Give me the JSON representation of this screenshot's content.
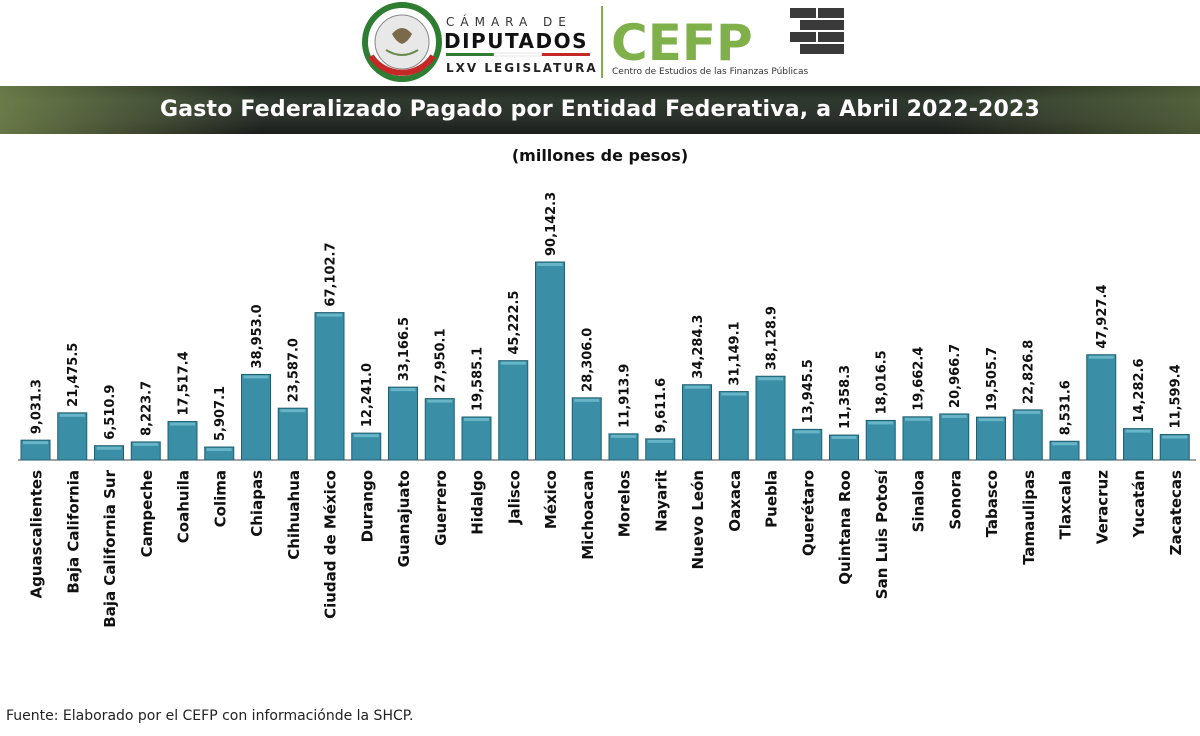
{
  "header": {
    "camara_line": "CÁMARA DE",
    "diputados_line": "DIPUTADOS",
    "legislatura_line": "LXV LEGISLATURA",
    "cefp_logo": "CEFP",
    "cefp_name": "Centro de Estudios de las Finanzas Públicas",
    "brand_green": "#7fb04a"
  },
  "banner": {
    "title": "Gasto Federalizado Pagado por Entidad Federativa, a Abril 2022-2023"
  },
  "subtitle": "(millones de pesos)",
  "source": "Fuente: Elaborado por el CEFP con informaciónde la SHCP.",
  "chart_data": {
    "type": "bar",
    "title": "Gasto Federalizado Pagado por Entidad Federativa, a Abril 2022-2023",
    "subtitle": "(millones de pesos)",
    "bar_color": "#3a8fa6",
    "grid": false,
    "ylim": [
      0,
      90142.3
    ],
    "categories": [
      "Aguascalientes",
      "Baja California",
      "Baja California Sur",
      "Campeche",
      "Coahuila",
      "Colima",
      "Chiapas",
      "Chihuahua",
      "Ciudad de México",
      "Durango",
      "Guanajuato",
      "Guerrero",
      "Hidalgo",
      "Jalisco",
      "México",
      "Michoacan",
      "Morelos",
      "Nayarit",
      "Nuevo León",
      "Oaxaca",
      "Puebla",
      "Querétaro",
      "Quintana Roo",
      "San Luis Potosí",
      "Sinaloa",
      "Sonora",
      "Tabasco",
      "Tamaulipas",
      "Tlaxcala",
      "Veracruz",
      "Yucatán",
      "Zacatecas"
    ],
    "values": [
      9031.3,
      21475.5,
      6510.9,
      8223.7,
      17517.4,
      5907.1,
      38953.0,
      23587.0,
      67102.7,
      12241.0,
      33166.5,
      27950.1,
      19585.1,
      45222.5,
      90142.3,
      28306.0,
      11913.9,
      9611.6,
      34284.3,
      31149.1,
      38128.9,
      13945.5,
      11358.3,
      18016.5,
      19662.4,
      20966.7,
      19505.7,
      22826.8,
      8531.6,
      47927.4,
      14282.6,
      11599.4
    ],
    "labels": [
      "9,031.3",
      "21,475.5",
      "6,510.9",
      "8,223.7",
      "17,517.4",
      "5,907.1",
      "38,953.0",
      "23,587.0",
      "67,102.7",
      "12,241.0",
      "33,166.5",
      "27,950.1",
      "19,585.1",
      "45,222.5",
      "90,142.3",
      "28,306.0",
      "11,913.9",
      "9,611.6",
      "34,284.3",
      "31,149.1",
      "38,128.9",
      "13,945.5",
      "11,358.3",
      "18,016.5",
      "19,662.4",
      "20,966.7",
      "19,505.7",
      "22,826.8",
      "8,531.6",
      "47,927.4",
      "14,282.6",
      "11,599.4"
    ]
  }
}
